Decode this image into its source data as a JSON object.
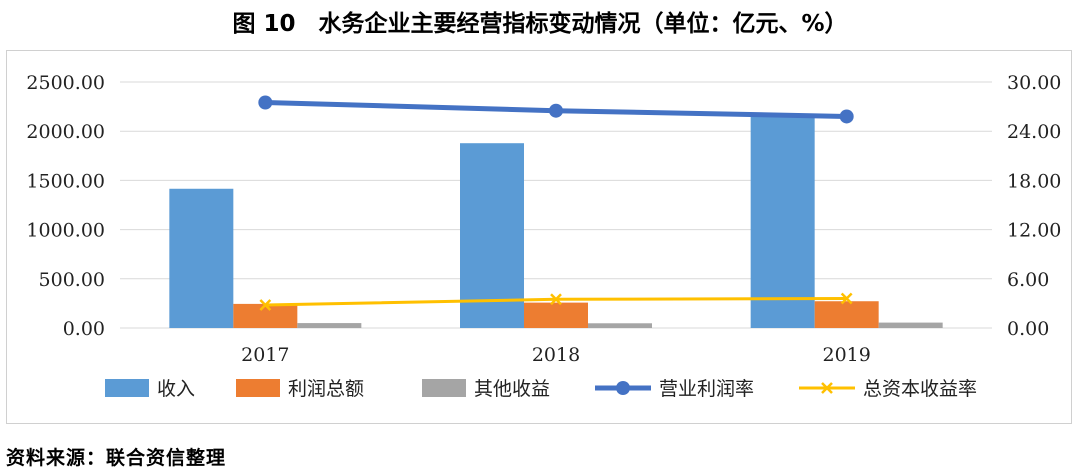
{
  "title": "图 10　水务企业主要经营指标变动情况（单位：亿元、%）",
  "source": "资料来源：联合资信整理",
  "chart_data": {
    "type": "bar",
    "categories": [
      "2017",
      "2018",
      "2019"
    ],
    "y_left": {
      "ticks": [
        "0.00",
        "500.00",
        "1000.00",
        "1500.00",
        "2000.00",
        "2500.00"
      ],
      "ylim": [
        0,
        2500
      ]
    },
    "y_right": {
      "ticks": [
        "0.00",
        "6.00",
        "12.00",
        "18.00",
        "24.00",
        "30.00"
      ],
      "ylim": [
        0,
        30
      ]
    },
    "grid": true,
    "legend_position": "bottom",
    "series": [
      {
        "name": "收入",
        "kind": "bar",
        "axis": "left",
        "color": "#5b9bd5",
        "values": [
          1415,
          1878,
          2150
        ]
      },
      {
        "name": "利润总额",
        "kind": "bar",
        "axis": "left",
        "color": "#ed7d31",
        "values": [
          245,
          258,
          272
        ]
      },
      {
        "name": "其他收益",
        "kind": "bar",
        "axis": "left",
        "color": "#a5a5a5",
        "values": [
          50,
          48,
          55
        ]
      },
      {
        "name": "营业利润率",
        "kind": "line",
        "axis": "right",
        "color": "#4472c4",
        "marker": "circle",
        "values": [
          27.5,
          26.5,
          25.8
        ]
      },
      {
        "name": "总资本收益率",
        "kind": "line",
        "axis": "right",
        "color": "#ffc000",
        "marker": "x",
        "values": [
          2.8,
          3.5,
          3.6
        ]
      }
    ]
  }
}
